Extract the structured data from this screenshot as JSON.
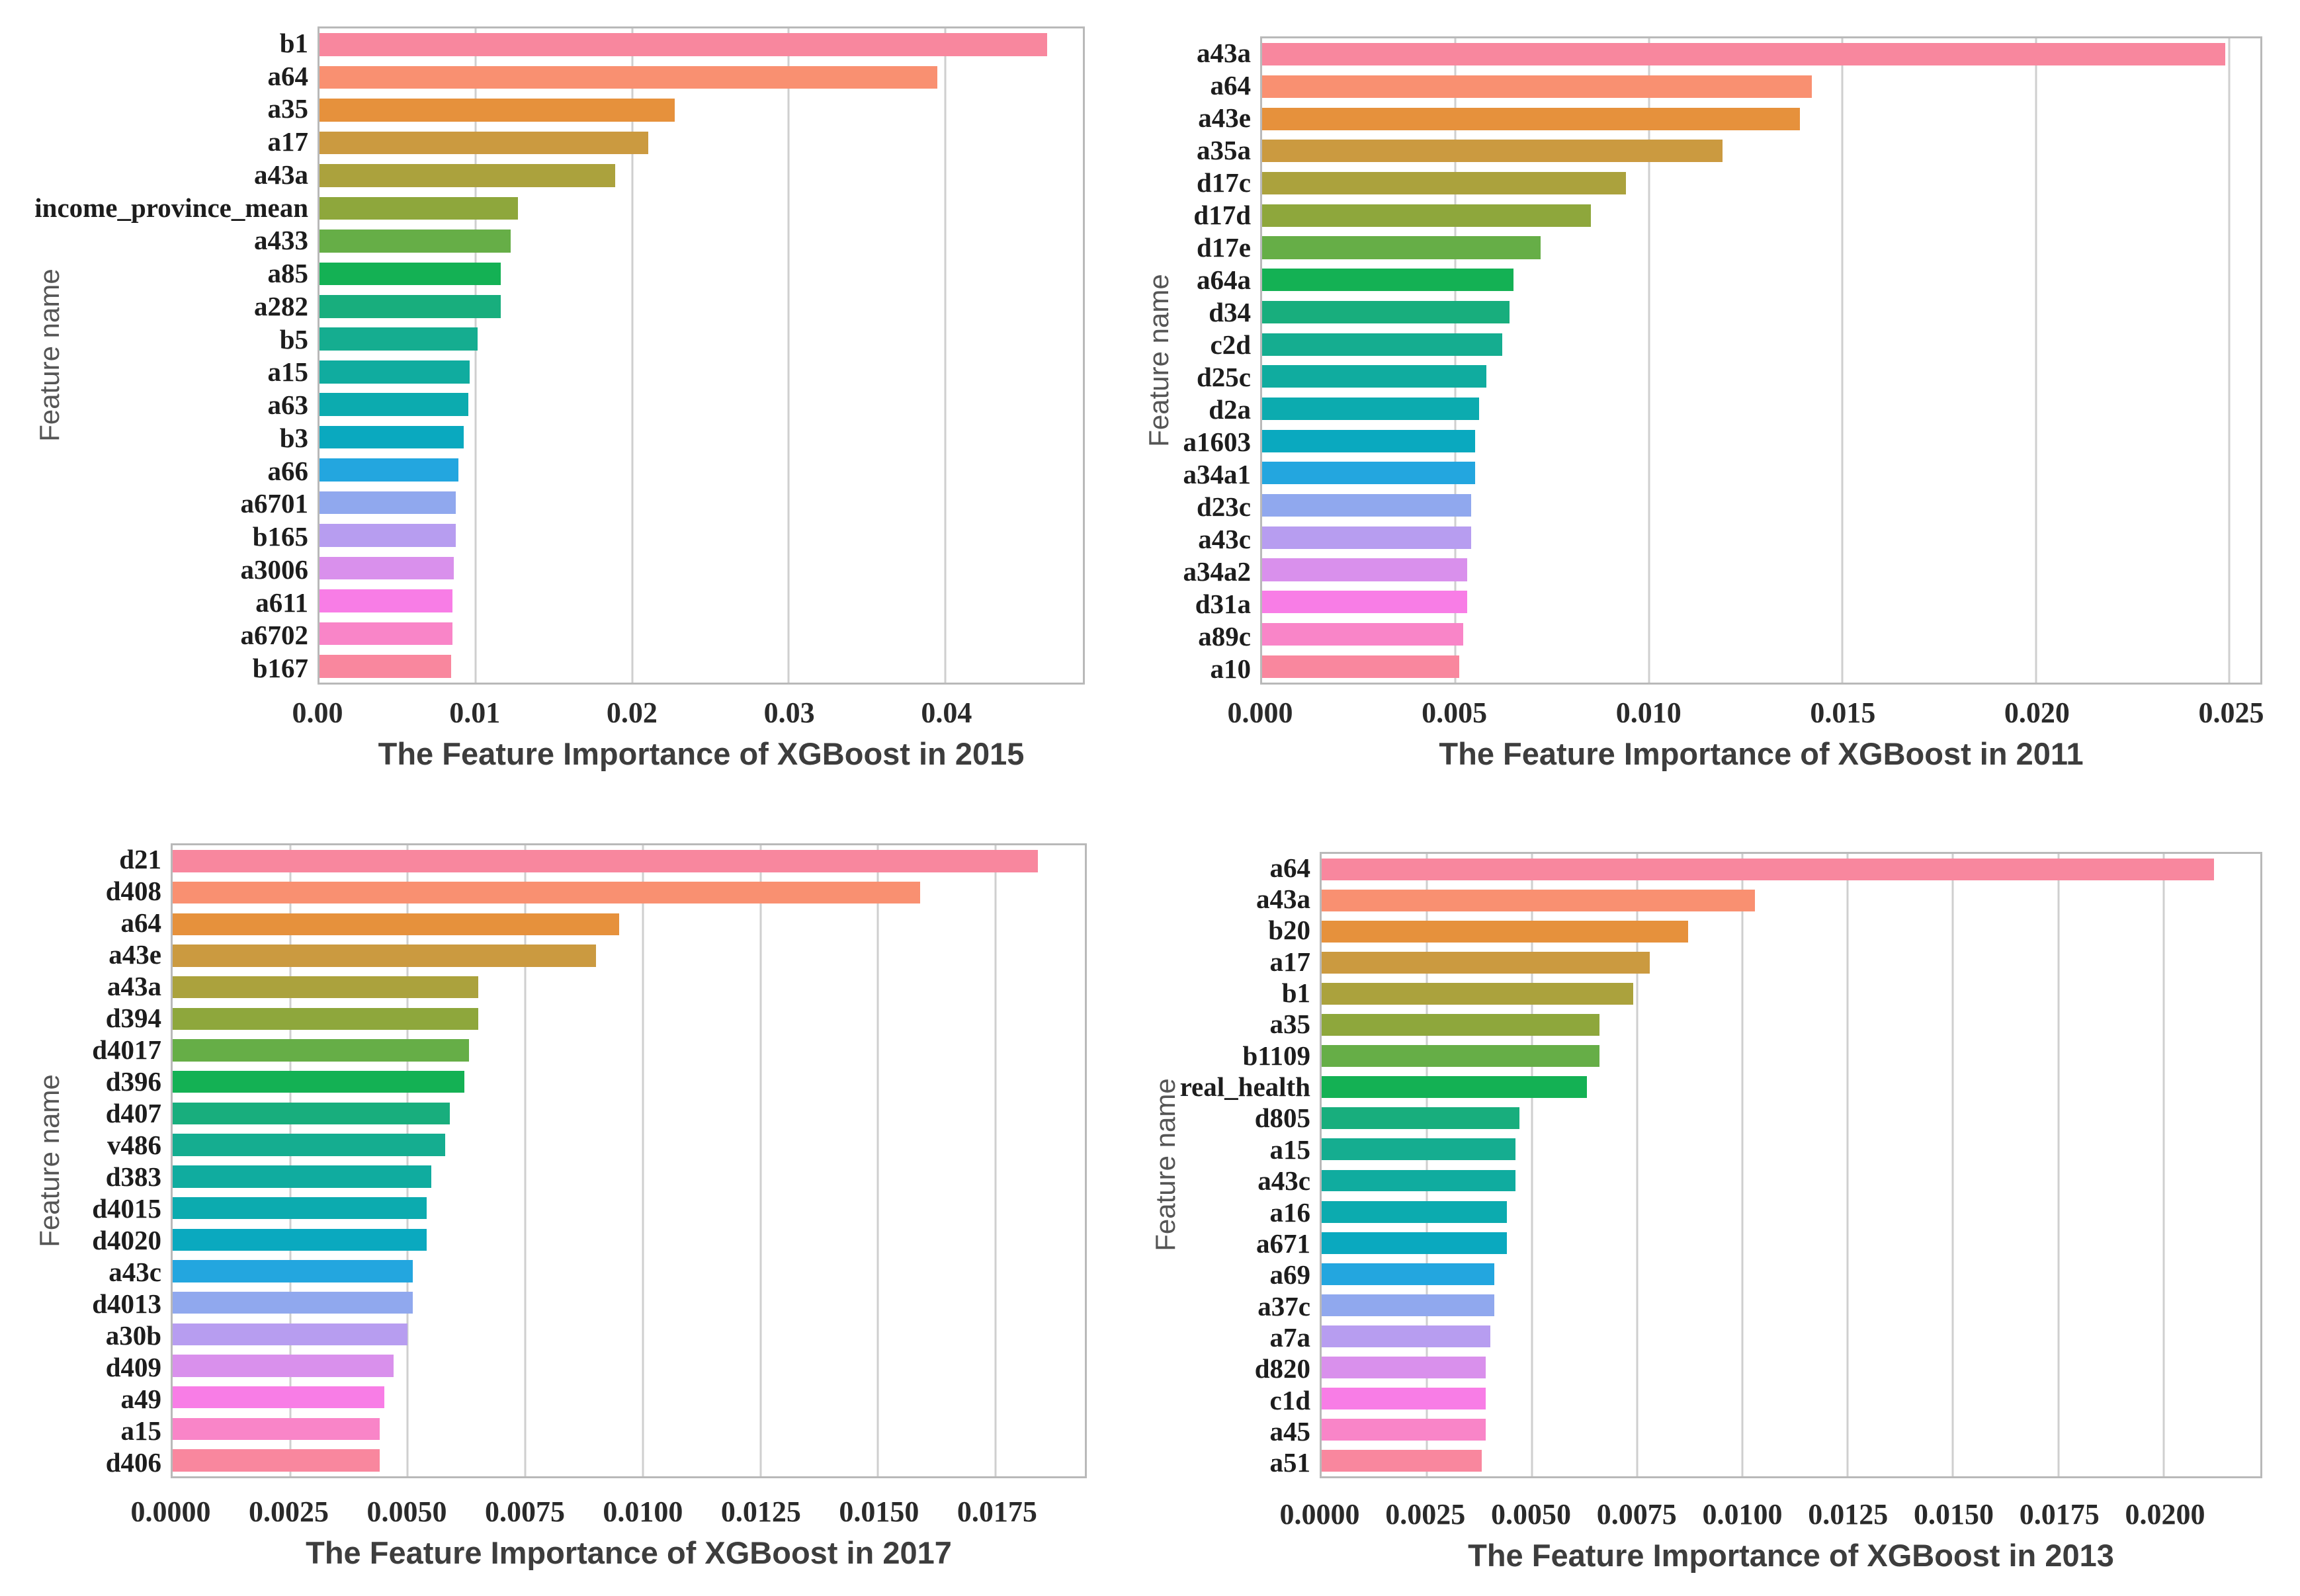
{
  "page": {
    "background": "#ffffff",
    "y_axis_label": "Feature name"
  },
  "palette": [
    "#f8879e",
    "#f99071",
    "#e6913c",
    "#cb9a40",
    "#aba23d",
    "#8ea73c",
    "#66ae47",
    "#14b154",
    "#18ae7d",
    "#15ad90",
    "#10ac9f",
    "#0cabaf",
    "#0aa9bf",
    "#23a6df",
    "#90a8ee",
    "#b79df0",
    "#d990ec",
    "#f87de6",
    "#f985c8",
    "#f9879e"
  ],
  "chart_data": [
    {
      "type": "bar",
      "orientation": "horizontal",
      "title": "The Feature Importance of XGBoost in 2015",
      "ylabel": "Feature name",
      "xlabel": "",
      "grid": true,
      "categories": [
        "b1",
        "a64",
        "a35",
        "a17",
        "a43a",
        "income_province_mean",
        "a433",
        "a85",
        "a282",
        "b5",
        "a15",
        "a63",
        "b3",
        "a66",
        "a6701",
        "b165",
        "a3006",
        "a611",
        "a6702",
        "b167"
      ],
      "values": [
        0.0465,
        0.0395,
        0.0227,
        0.021,
        0.0189,
        0.0127,
        0.0122,
        0.0116,
        0.0116,
        0.0101,
        0.0096,
        0.0095,
        0.0092,
        0.0089,
        0.0087,
        0.0087,
        0.0086,
        0.0085,
        0.0085,
        0.0084
      ],
      "xlim": [
        0,
        0.0488
      ],
      "tick_values": [
        0,
        0.01,
        0.02,
        0.03,
        0.04
      ],
      "tick_labels": [
        "0.00",
        "0.01",
        "0.02",
        "0.03",
        "0.04"
      ]
    },
    {
      "type": "bar",
      "orientation": "horizontal",
      "title": "The Feature Importance of XGBoost in 2011",
      "ylabel": "Feature name",
      "xlabel": "",
      "grid": true,
      "categories": [
        "a43a",
        "a64",
        "a43e",
        "a35a",
        "d17c",
        "d17d",
        "d17e",
        "a64a",
        "d34",
        "c2d",
        "d25c",
        "d2a",
        "a1603",
        "a34a1",
        "d23c",
        "a43c",
        "a34a2",
        "d31a",
        "a89c",
        "a10"
      ],
      "values": [
        0.0249,
        0.0142,
        0.0139,
        0.0119,
        0.0094,
        0.0085,
        0.0072,
        0.0065,
        0.0064,
        0.0062,
        0.0058,
        0.0056,
        0.0055,
        0.0055,
        0.0054,
        0.0054,
        0.0053,
        0.0053,
        0.0052,
        0.0051
      ],
      "xlim": [
        0,
        0.0258
      ],
      "tick_values": [
        0,
        0.005,
        0.01,
        0.015,
        0.02,
        0.025
      ],
      "tick_labels": [
        "0.000",
        "0.005",
        "0.010",
        "0.015",
        "0.020",
        "0.025"
      ]
    },
    {
      "type": "bar",
      "orientation": "horizontal",
      "title": "The Feature Importance of XGBoost in 2017",
      "ylabel": "Feature name",
      "xlabel": "",
      "grid": true,
      "categories": [
        "d21",
        "d408",
        "a64",
        "a43e",
        "a43a",
        "d394",
        "d4017",
        "d396",
        "d407",
        "v486",
        "d383",
        "d4015",
        "d4020",
        "a43c",
        "d4013",
        "a30b",
        "d409",
        "a49",
        "a15",
        "d406"
      ],
      "values": [
        0.0184,
        0.0159,
        0.0095,
        0.009,
        0.0065,
        0.0065,
        0.0063,
        0.0062,
        0.0059,
        0.0058,
        0.0055,
        0.0054,
        0.0054,
        0.0051,
        0.0051,
        0.005,
        0.0047,
        0.0045,
        0.0044,
        0.0044
      ],
      "xlim": [
        0,
        0.0194
      ],
      "tick_values": [
        0,
        0.0025,
        0.005,
        0.0075,
        0.01,
        0.0125,
        0.015,
        0.0175
      ],
      "tick_labels": [
        "0.0000",
        "0.0025",
        "0.0050",
        "0.0075",
        "0.0100",
        "0.0125",
        "0.0150",
        "0.0175"
      ]
    },
    {
      "type": "bar",
      "orientation": "horizontal",
      "title": "The Feature Importance of XGBoost in 2013",
      "ylabel": "Feature name",
      "xlabel": "",
      "grid": true,
      "categories": [
        "a64",
        "a43a",
        "b20",
        "a17",
        "b1",
        "a35",
        "b1109",
        "real_health",
        "d805",
        "a15",
        "a43c",
        "a16",
        "a671",
        "a69",
        "a37c",
        "a7a",
        "d820",
        "c1d",
        "a45",
        "a51"
      ],
      "values": [
        0.0212,
        0.0103,
        0.0087,
        0.0078,
        0.0074,
        0.0066,
        0.0066,
        0.0063,
        0.0047,
        0.0046,
        0.0046,
        0.0044,
        0.0044,
        0.0041,
        0.0041,
        0.004,
        0.0039,
        0.0039,
        0.0039,
        0.0038
      ],
      "xlim": [
        0,
        0.0223
      ],
      "tick_values": [
        0,
        0.0025,
        0.005,
        0.0075,
        0.01,
        0.0125,
        0.015,
        0.0175,
        0.02
      ],
      "tick_labels": [
        "0.0000",
        "0.0025",
        "0.0050",
        "0.0075",
        "0.0100",
        "0.0125",
        "0.0150",
        "0.0175",
        "0.0200"
      ]
    }
  ]
}
